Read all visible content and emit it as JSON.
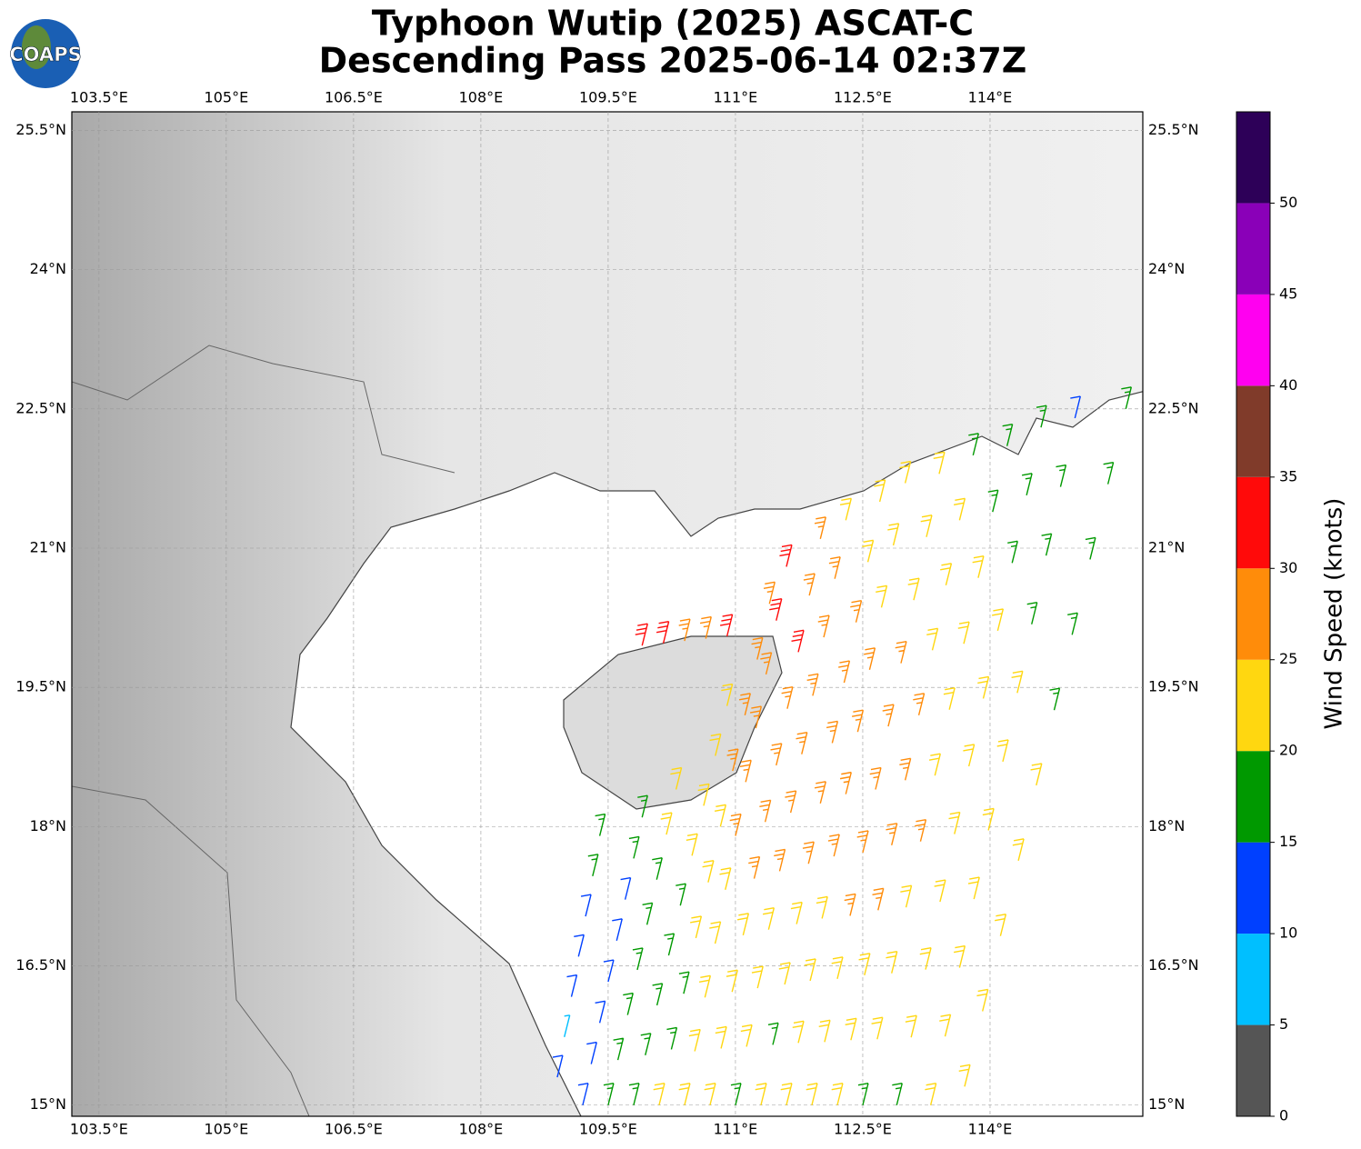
{
  "logo": "COAPS",
  "chart_data": {
    "type": "barbs",
    "title": [
      "Typhoon Wutip (2025) ASCAT-C",
      "Descending Pass 2025-06-14 02:37Z"
    ],
    "xlim": [
      103.18,
      115.8
    ],
    "ylim": [
      14.88,
      25.7
    ],
    "xticks": [
      {
        "value": 103.5,
        "label": "103.5°E"
      },
      {
        "value": 105,
        "label": "105°E"
      },
      {
        "value": 106.5,
        "label": "106.5°E"
      },
      {
        "value": 108,
        "label": "108°E"
      },
      {
        "value": 109.5,
        "label": "109.5°E"
      },
      {
        "value": 111,
        "label": "111°E"
      },
      {
        "value": 112.5,
        "label": "112.5°E"
      },
      {
        "value": 114,
        "label": "114°E"
      }
    ],
    "yticks": [
      {
        "value": 15,
        "label": "15°N"
      },
      {
        "value": 16.5,
        "label": "16.5°N"
      },
      {
        "value": 18,
        "label": "18°N"
      },
      {
        "value": 19.5,
        "label": "19.5°N"
      },
      {
        "value": 21,
        "label": "21°N"
      },
      {
        "value": 22.5,
        "label": "22.5°N"
      },
      {
        "value": 24,
        "label": "24°N"
      },
      {
        "value": 25.5,
        "label": "25.5°N"
      }
    ],
    "grid": true,
    "columns": [
      {
        "lon": [
          108.9,
          109.4
        ],
        "lat": [
          15.3,
          17.9
        ],
        "speeds": [
          12,
          9,
          13,
          14,
          12,
          16,
          17
        ]
      },
      {
        "lon": [
          109.2,
          109.9
        ],
        "lat": [
          15.0,
          18.1
        ],
        "speeds": [
          12,
          13,
          12,
          14,
          13,
          13,
          17,
          19
        ]
      },
      {
        "lon": [
          109.5,
          110.3
        ],
        "lat": [
          15.0,
          18.4
        ],
        "speeds": [
          17,
          18,
          16,
          17,
          16,
          18,
          21,
          22
        ]
      },
      {
        "lon": [
          109.8,
          110.9
        ],
        "lat": [
          15.0,
          19.3
        ],
        "speeds": [
          18,
          19,
          17,
          18,
          19,
          21,
          22,
          23,
          24
        ]
      },
      {
        "lon": [
          110.1,
          111.4
        ],
        "lat": [
          15.0,
          20.4
        ],
        "speeds": [
          22,
          18,
          19,
          21,
          22,
          23,
          26,
          27,
          28,
          27
        ]
      },
      {
        "lon": [
          110.4,
          111.6
        ],
        "lat": [
          15.0,
          20.8
        ],
        "speeds": [
          22,
          23,
          22,
          24,
          23,
          26,
          27,
          28,
          29,
          31,
          32
        ]
      },
      {
        "lon": [
          110.7,
          112.0
        ],
        "lat": [
          15.0,
          21.1
        ],
        "speeds": [
          22,
          23,
          24,
          23,
          25,
          26,
          27,
          28,
          32,
          28,
          27
        ]
      },
      {
        "lon": [
          111.0,
          112.3
        ],
        "lat": [
          15.0,
          21.3
        ],
        "speeds": [
          17,
          23,
          22,
          24,
          25,
          27,
          26,
          28,
          27,
          26,
          24
        ]
      },
      {
        "lon": [
          111.3,
          112.7
        ],
        "lat": [
          15.0,
          21.5
        ],
        "speeds": [
          22,
          17,
          23,
          24,
          26,
          27,
          26,
          27,
          26,
          24,
          23
        ]
      },
      {
        "lon": [
          111.6,
          113.0
        ],
        "lat": [
          15.0,
          21.7
        ],
        "speeds": [
          22,
          23,
          24,
          23,
          26,
          27,
          28,
          26,
          24,
          23,
          22
        ]
      },
      {
        "lon": [
          111.9,
          113.4
        ],
        "lat": [
          15.0,
          21.8
        ],
        "speeds": [
          23,
          22,
          24,
          26,
          27,
          28,
          26,
          25,
          24,
          22,
          21
        ]
      },
      {
        "lon": [
          112.2,
          113.8
        ],
        "lat": [
          15.0,
          22.0
        ],
        "speeds": [
          22,
          23,
          24,
          27,
          28,
          26,
          25,
          23,
          22,
          21,
          18
        ]
      },
      {
        "lon": [
          112.5,
          114.2
        ],
        "lat": [
          15.0,
          22.1
        ],
        "speeds": [
          18,
          22,
          23,
          24,
          26,
          24,
          23,
          22,
          21,
          19,
          18
        ]
      },
      {
        "lon": [
          112.9,
          114.6
        ],
        "lat": [
          15.0,
          22.3
        ],
        "speeds": [
          18,
          22,
          23,
          22,
          24,
          23,
          22,
          21,
          19,
          18,
          17
        ]
      },
      {
        "lon": [
          113.3,
          115.0
        ],
        "lat": [
          15.0,
          22.4
        ],
        "speeds": [
          22,
          21,
          22,
          23,
          22,
          22,
          21,
          19,
          18,
          17,
          13
        ]
      },
      {
        "lon": [
          113.7,
          115.6
        ],
        "lat": [
          15.2,
          22.5
        ],
        "speeds": [
          22,
          21,
          22,
          21,
          21,
          19,
          18,
          17,
          18,
          17
        ]
      },
      {
        "lon": [
          109.9,
          110.9
        ],
        "lat": [
          19.95,
          20.05
        ],
        "speeds": [
          32,
          31,
          27,
          28,
          31
        ]
      }
    ],
    "colorbar": {
      "label": "Wind Speed (knots)",
      "levels": [
        0,
        5,
        10,
        15,
        20,
        25,
        30,
        35,
        40,
        45,
        50,
        55
      ],
      "colors": [
        "#555555",
        "#00bfff",
        "#0040ff",
        "#009900",
        "#ffd710",
        "#ff8c0a",
        "#ff0a0a",
        "#803b2a",
        "#ff00f0",
        "#8a00b8",
        "#2d0058"
      ],
      "ticks": [
        0,
        5,
        10,
        15,
        20,
        25,
        30,
        35,
        40,
        45,
        50
      ]
    }
  }
}
